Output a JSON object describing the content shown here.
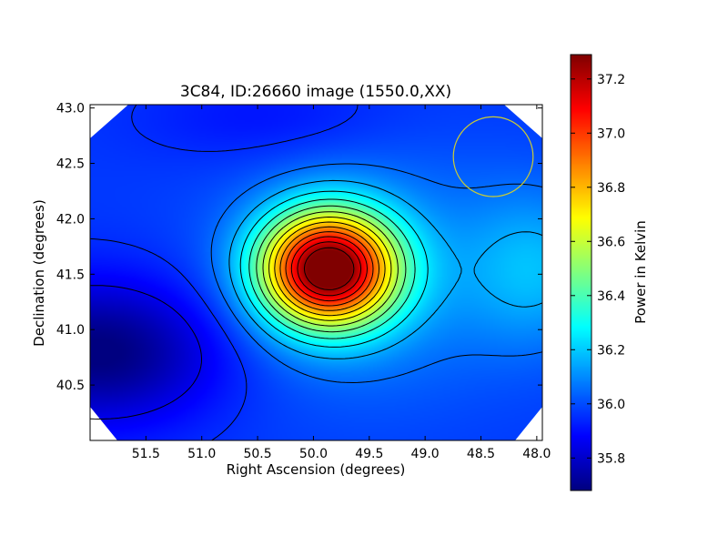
{
  "chart_data": {
    "type": "heatmap",
    "title": "3C84, ID:26660 image (1550.0,XX)",
    "xlabel": "Right Ascension (degrees)",
    "ylabel": "Declination (degrees)",
    "colorbar_label": "Power in Kelvin",
    "xlim": [
      52.0,
      47.95
    ],
    "ylim": [
      40.0,
      43.03
    ],
    "x_ticks": [
      "51.5",
      "51.0",
      "50.5",
      "50.0",
      "49.5",
      "49.0",
      "48.5",
      "48.0"
    ],
    "x_tick_values": [
      51.5,
      51.0,
      50.5,
      50.0,
      49.5,
      49.0,
      48.5,
      48.0
    ],
    "y_ticks": [
      "40.5",
      "41.0",
      "41.5",
      "42.0",
      "42.5",
      "43.0"
    ],
    "y_tick_values": [
      40.5,
      41.0,
      41.5,
      42.0,
      42.5,
      43.0
    ],
    "colorbar_range": [
      35.68,
      37.29
    ],
    "colorbar_ticks": [
      "35.8",
      "36.0",
      "36.2",
      "36.4",
      "36.6",
      "36.8",
      "37.0",
      "37.2"
    ],
    "colorbar_tick_values": [
      35.8,
      36.0,
      36.2,
      36.4,
      36.6,
      36.8,
      37.0,
      37.2
    ],
    "colormap": "jet",
    "peak": {
      "ra": 49.87,
      "dec": 41.55,
      "value": 37.29
    },
    "minimum": {
      "ra": 51.9,
      "dec": 40.8,
      "value": 35.68
    },
    "secondary_feature": {
      "ra": 48.0,
      "dec": 41.55,
      "value": 36.15
    },
    "beam_circle": {
      "ra": 48.39,
      "dec": 42.56,
      "radius_deg": 0.36,
      "color": "#cccc33"
    },
    "contour_color": "#000000"
  }
}
